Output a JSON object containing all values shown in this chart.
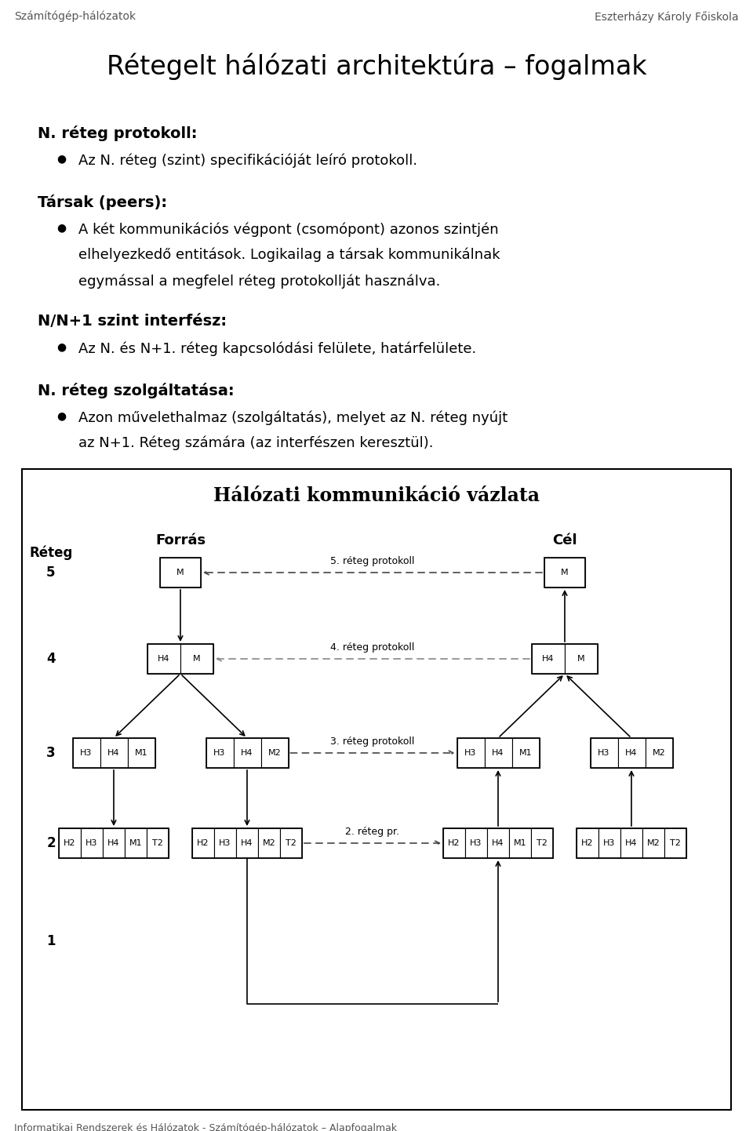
{
  "title": "Rétegelt hálózati architektúra – fogalmak",
  "header_left": "Számítógép-hálózatok",
  "header_right": "Eszterházy Károly Főiskola",
  "footer": "Informatikai Rendszerek és Hálózatok - Számítógép-hálózatok – Alapfogalmak",
  "bg_color": "#ffffff",
  "text_color": "#000000"
}
